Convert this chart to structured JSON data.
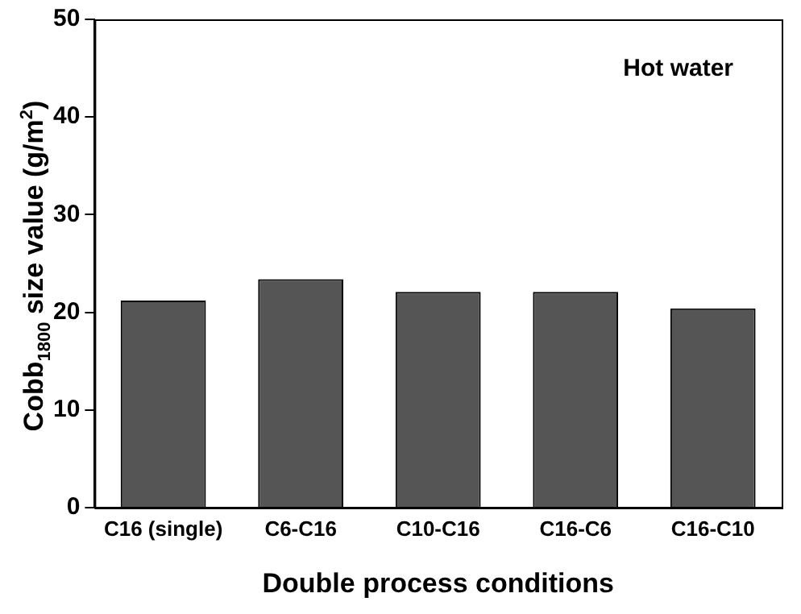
{
  "chart_data": {
    "type": "bar",
    "xlabel": "Double process conditions",
    "ylabel": "Cobb$_{1800}$ size value (g/m$^{2}$)",
    "categories": [
      "C16 (single)",
      "C6-C16",
      "C10-C16",
      "C16-C6",
      "C16-C10"
    ],
    "values": [
      21.2,
      23.4,
      22.1,
      22.1,
      20.4
    ],
    "color": "#555555",
    "ylim": [
      0,
      50
    ],
    "yticks": [
      0,
      10,
      20,
      30,
      40,
      50
    ],
    "grid": false,
    "legend": false,
    "annotations": [
      "Hot water"
    ]
  }
}
